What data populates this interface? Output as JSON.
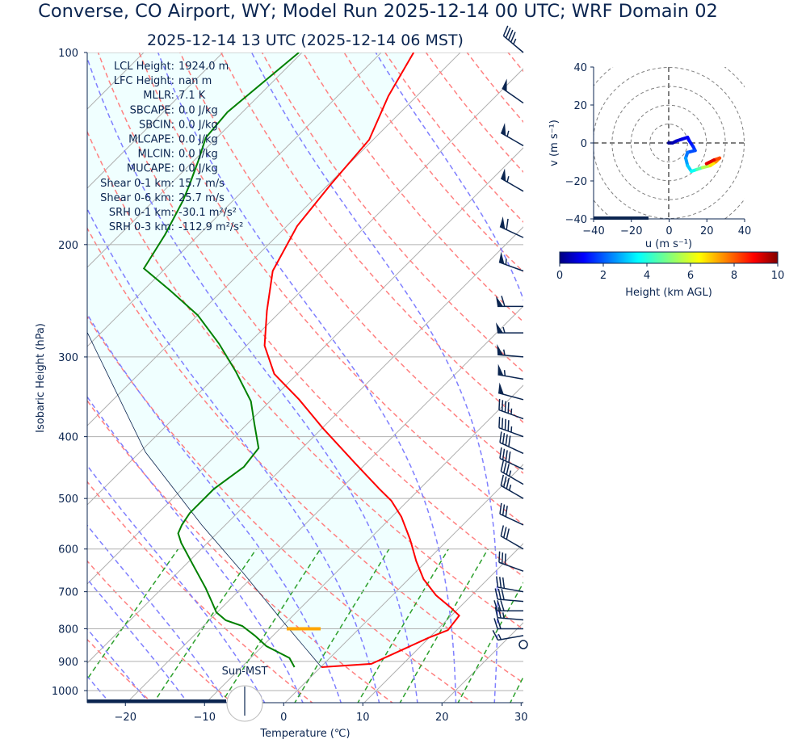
{
  "title": "Converse, CO Airport, WY; Model Run 2025-12-14 00 UTC; WRF Domain 02",
  "subtitle": "2025-12-14 13 UTC  (2025-12-14 06 MST)",
  "colors": {
    "text": "#0b2550",
    "temperature": "#ff0000",
    "dewpoint": "#008000",
    "parcel": "#0b2550",
    "cape_fill": "#f0ffff",
    "lcl": "#ffa500",
    "isotherm": "#b0b0b0",
    "dry_adiabat": "#ff8080",
    "moist_adiabat": "#7f7fff",
    "mixing_ratio": "#2ca02c"
  },
  "stats": [
    {
      "label": "LCL Height:",
      "value": "1924.0 m"
    },
    {
      "label": "LFC Height:",
      "value": "nan m"
    },
    {
      "label": "MLLR:",
      "value": "7.1 K"
    },
    {
      "label": "SBCAPE:",
      "value": "0.0 J/kg"
    },
    {
      "label": "SBCIN:",
      "value": "0.0 J/kg"
    },
    {
      "label": "MLCAPE:",
      "value": "0.0 J/kg"
    },
    {
      "label": "MLCIN:",
      "value": "0.0 J/kg"
    },
    {
      "label": "MUCAPE:",
      "value": "0.0 J/kg"
    },
    {
      "label": "Shear 0-1 km:",
      "value": "15.7 m/s"
    },
    {
      "label": "Shear 0-6 km:",
      "value": "25.7 m/s"
    },
    {
      "label": "SRH 0-1 km:",
      "value": "-30.1 m²/s²"
    },
    {
      "label": "SRH 0-3 km:",
      "value": "-112.9 m²/s²"
    }
  ],
  "sun_label": "Sun-MST",
  "chart_data": [
    {
      "type": "line",
      "name": "skew-t",
      "xlabel": "Temperature (℃)",
      "ylabel": "Isobaric Height (hPa)",
      "xlim": [
        -25,
        30
      ],
      "ylim": [
        1050,
        100
      ],
      "yscale": "log",
      "xticks": [
        "−20",
        "−10",
        "0",
        "10",
        "20",
        "30"
      ],
      "xtick_values": [
        -20,
        -10,
        0,
        10,
        20,
        30
      ],
      "yticks": [
        "100",
        "200",
        "300",
        "400",
        "500",
        "600",
        "700",
        "800",
        "900",
        "1000"
      ],
      "ytick_values": [
        100,
        200,
        300,
        400,
        500,
        600,
        700,
        800,
        900,
        1000
      ],
      "lcl_pressure": 800,
      "temperature": [
        [
          919,
          0.1
        ],
        [
          908,
          6.0
        ],
        [
          827,
          9.9
        ],
        [
          804,
          11.4
        ],
        [
          763,
          11.0
        ],
        [
          741,
          8.9
        ],
        [
          709,
          5.5
        ],
        [
          669,
          1.9
        ],
        [
          627,
          -1.3
        ],
        [
          580,
          -4.8
        ],
        [
          534,
          -8.8
        ],
        [
          504,
          -12.1
        ],
        [
          483,
          -15.1
        ],
        [
          441,
          -21.3
        ],
        [
          388,
          -29.9
        ],
        [
          350,
          -36.5
        ],
        [
          319,
          -42.9
        ],
        [
          288,
          -47.7
        ],
        [
          254,
          -51.8
        ],
        [
          220,
          -56.1
        ],
        [
          187,
          -58.7
        ],
        [
          161,
          -59.7
        ],
        [
          137,
          -60.5
        ],
        [
          117,
          -63.6
        ],
        [
          100,
          -65.9
        ]
      ],
      "dewpoint": [
        [
          919,
          -3.3
        ],
        [
          889,
          -5.1
        ],
        [
          852,
          -9.5
        ],
        [
          820,
          -12.3
        ],
        [
          792,
          -15.1
        ],
        [
          776,
          -17.9
        ],
        [
          754,
          -20.1
        ],
        [
          726,
          -22.0
        ],
        [
          691,
          -24.5
        ],
        [
          637,
          -28.9
        ],
        [
          587,
          -33.3
        ],
        [
          567,
          -34.9
        ],
        [
          550,
          -35.5
        ],
        [
          527,
          -36.0
        ],
        [
          483,
          -36.0
        ],
        [
          446,
          -35.0
        ],
        [
          417,
          -35.5
        ],
        [
          382,
          -39.1
        ],
        [
          352,
          -42.4
        ],
        [
          316,
          -48.1
        ],
        [
          286,
          -53.7
        ],
        [
          258,
          -60.0
        ],
        [
          236,
          -66.6
        ],
        [
          218,
          -72.7
        ],
        [
          193,
          -74.3
        ],
        [
          171,
          -76.3
        ],
        [
          162,
          -77.4
        ],
        [
          148,
          -79.4
        ],
        [
          136,
          -81.4
        ],
        [
          124,
          -81.9
        ],
        [
          100,
          -80.4
        ]
      ],
      "parcel": [
        [
          919,
          0.1
        ],
        [
          792,
          -9.5
        ],
        [
          654,
          -21.7
        ],
        [
          550,
          -33.0
        ],
        [
          423,
          -49.3
        ],
        [
          275,
          -71.7
        ]
      ],
      "wind_barbs_kt": [
        [
          100,
          310,
          45
        ],
        [
          120,
          305,
          50
        ],
        [
          140,
          300,
          55
        ],
        [
          165,
          300,
          55
        ],
        [
          195,
          295,
          60
        ],
        [
          220,
          290,
          55
        ],
        [
          250,
          270,
          60
        ],
        [
          275,
          270,
          55
        ],
        [
          300,
          275,
          55
        ],
        [
          325,
          280,
          55
        ],
        [
          350,
          285,
          50
        ],
        [
          375,
          290,
          45
        ],
        [
          400,
          290,
          45
        ],
        [
          425,
          295,
          40
        ],
        [
          450,
          295,
          40
        ],
        [
          475,
          300,
          35
        ],
        [
          500,
          300,
          35
        ],
        [
          550,
          295,
          30
        ],
        [
          600,
          300,
          30
        ],
        [
          650,
          290,
          30
        ],
        [
          700,
          280,
          30
        ],
        [
          725,
          275,
          30
        ],
        [
          750,
          270,
          30
        ],
        [
          775,
          275,
          25
        ],
        [
          800,
          270,
          20
        ],
        [
          820,
          260,
          15
        ],
        [
          847,
          0,
          0
        ]
      ]
    },
    {
      "type": "line",
      "name": "hodograph",
      "xlabel": "u (m s⁻¹)",
      "ylabel": "v (m s⁻¹)",
      "xlim": [
        -40,
        40
      ],
      "ylim": [
        -40,
        40
      ],
      "xticks": [
        "−40",
        "−20",
        "0",
        "20",
        "40"
      ],
      "yticks": [
        "40",
        "20",
        "0",
        "−20",
        "−40"
      ],
      "rings": [
        10,
        20,
        30,
        40,
        50
      ],
      "colorbar": {
        "label": "Height (km AGL)",
        "range": [
          0,
          10
        ],
        "ticks": [
          "0",
          "2",
          "4",
          "6",
          "8",
          "10"
        ],
        "colormap": "jet"
      },
      "points_u_v_height": [
        [
          0,
          0,
          0
        ],
        [
          2,
          0,
          0.3
        ],
        [
          4,
          1,
          0.6
        ],
        [
          7,
          2,
          0.9
        ],
        [
          10,
          3,
          1.1
        ],
        [
          11,
          1,
          1.3
        ],
        [
          13,
          -2,
          1.6
        ],
        [
          14,
          -4,
          1.8
        ],
        [
          10,
          -5,
          2.2
        ],
        [
          9,
          -8,
          2.6
        ],
        [
          10,
          -12,
          3.0
        ],
        [
          12,
          -15,
          3.5
        ],
        [
          15,
          -14,
          4.2
        ],
        [
          18,
          -13,
          5.0
        ],
        [
          22,
          -12,
          6.0
        ],
        [
          25,
          -10,
          7.0
        ],
        [
          27,
          -8,
          7.6
        ],
        [
          24,
          -9,
          8.5
        ],
        [
          20,
          -11,
          9.5
        ]
      ]
    }
  ]
}
